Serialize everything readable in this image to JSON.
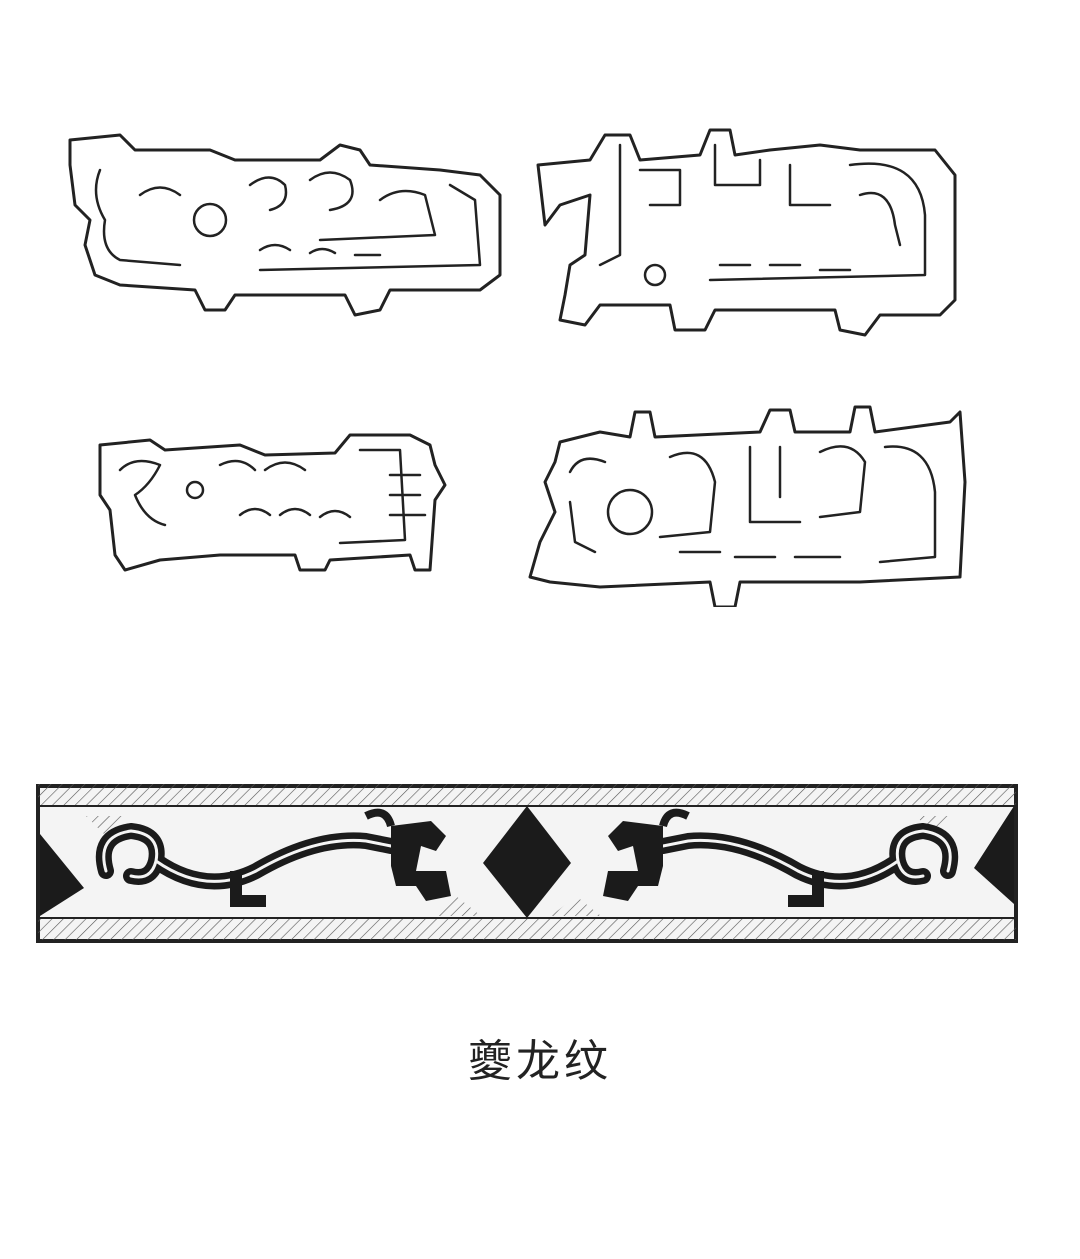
{
  "caption": "夔龙纹",
  "figure": {
    "motifs": [
      {
        "icon": "kui-dragon-outline-icon"
      },
      {
        "icon": "kui-dragon-outline-icon"
      },
      {
        "icon": "kui-dragon-outline-icon"
      },
      {
        "icon": "kui-dragon-outline-icon"
      }
    ],
    "band": {
      "icon": "kui-dragon-band-rubbing-icon"
    }
  },
  "colors": {
    "ink": "#1b1b1b",
    "paper": "#ffffff"
  }
}
